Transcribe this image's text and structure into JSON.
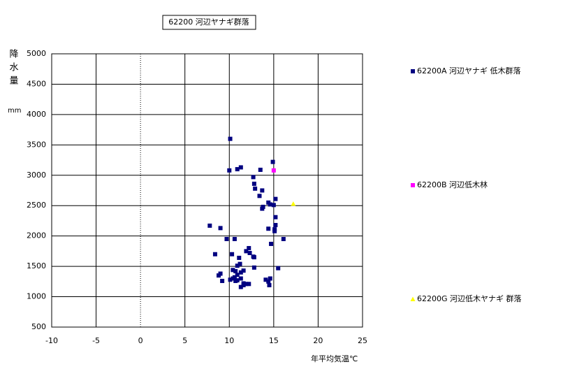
{
  "chart_data": {
    "type": "scatter",
    "title": "62200 河辺ヤナギ群落",
    "x_label": "年平均気温℃",
    "y_label": "降水量",
    "y_unit": "mm",
    "xlim": [
      -10,
      25
    ],
    "xticks": [
      -10,
      -5,
      0,
      5,
      10,
      15,
      20,
      25
    ],
    "ylim": [
      500,
      5000
    ],
    "yticks": [
      500,
      1000,
      1500,
      2000,
      2500,
      3000,
      3500,
      4000,
      4500,
      5000
    ],
    "grid": true,
    "legend": "right",
    "series": [
      {
        "name": "62200A 河辺ヤナギ 低木群落",
        "color": "#000080",
        "marker": "square",
        "x": [
          10.1,
          14.9,
          11.3,
          10.9,
          10.0,
          13.5,
          12.7,
          12.8,
          12.9,
          13.7,
          13.4,
          14.4,
          14.6,
          15.2,
          13.8,
          13.7,
          15.0,
          15.2,
          15.2,
          15.1,
          15.1,
          14.4,
          7.8,
          9.0,
          16.1,
          9.7,
          10.6,
          14.7,
          12.2,
          11.9,
          12.3,
          8.4,
          10.3,
          12.7,
          12.8,
          11.1,
          15.5,
          12.8,
          10.9,
          11.2,
          10.4,
          11.6,
          10.7,
          11.3,
          9.0,
          8.8,
          10.9,
          10.6,
          10.4,
          11.3,
          9.2,
          10.1,
          10.7,
          10.9,
          14.1,
          14.6,
          14.4,
          14.5,
          12.2,
          11.9,
          11.6,
          11.3,
          11.6
        ],
        "values": [
          3600,
          3220,
          3130,
          3100,
          3080,
          3090,
          2970,
          2860,
          2780,
          2750,
          2660,
          2550,
          2520,
          2610,
          2480,
          2450,
          2510,
          2310,
          2180,
          2110,
          2080,
          2120,
          2170,
          2130,
          1950,
          1950,
          1950,
          1870,
          1800,
          1750,
          1720,
          1700,
          1700,
          1660,
          1650,
          1640,
          1470,
          1480,
          1510,
          1540,
          1440,
          1430,
          1420,
          1400,
          1380,
          1350,
          1360,
          1320,
          1300,
          1300,
          1260,
          1280,
          1260,
          1270,
          1280,
          1300,
          1250,
          1190,
          1210,
          1210,
          1220,
          1160,
          1190
        ]
      },
      {
        "name": "62200B 河辺低木林",
        "color": "#ff00ff",
        "marker": "square",
        "x": [
          15.0
        ],
        "values": [
          3080
        ]
      },
      {
        "name": "62200G 河辺低木ヤナギ 群落",
        "color": "#ffff00",
        "marker": "triangle",
        "x": [
          17.2
        ],
        "values": [
          2530
        ]
      }
    ]
  }
}
